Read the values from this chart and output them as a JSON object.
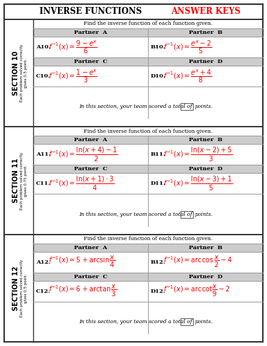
{
  "title_left": "INVERSE FUNCTIONS",
  "title_right": "ANSWER KEYS",
  "title_right_color": "#FF0000",
  "title_left_color": "#000000",
  "bg_color": "#FFFFFF",
  "border_color": "#333333",
  "header_bg": "#CCCCCC",
  "sections": [
    {
      "section_label": "SECTION 10",
      "side_text1": "Each problem solved correctly",
      "side_text2": "gives 0.5 point.",
      "instruction": "Find the inverse function of each function given.",
      "partners": [
        {
          "label": "Partner A",
          "id": "A10.",
          "formula": "$f^{-1}(x)=\\dfrac{9-e^{x}}{6}$"
        },
        {
          "label": "Partner B",
          "id": "B10.",
          "formula": "$f^{-1}(x)=\\dfrac{e^{x}-2}{5}$"
        },
        {
          "label": "Partner C",
          "id": "C10.",
          "formula": "$f^{-1}(x)=\\dfrac{1-e^{x}}{3}$"
        },
        {
          "label": "Partner D",
          "id": "D10.",
          "formula": "$f^{-1}(x)=\\dfrac{e^{x}+4}{8}$"
        }
      ],
      "score_text": "In this section, your team scored a total of",
      "score_suffix": "points."
    },
    {
      "section_label": "SECTION 11",
      "side_text1": "Each problem solved correctly",
      "side_text2": "gives 0.75 point.",
      "instruction": "Find the inverse function of each function given.",
      "partners": [
        {
          "label": "Partner A",
          "id": "A11.",
          "formula": "$f^{-1}(x)=\\dfrac{\\ln(x+4)-1}{2}$"
        },
        {
          "label": "Partner B",
          "id": "B11.",
          "formula": "$f^{-1}(x)=\\dfrac{\\ln(x-2)+5}{3}$"
        },
        {
          "label": "Partner C",
          "id": "C11.",
          "formula": "$f^{-1}(x)=\\dfrac{\\ln(x+1)\\cdot 3}{4}$"
        },
        {
          "label": "Partner D",
          "id": "D11.",
          "formula": "$f^{-1}(x)=\\dfrac{\\ln(x-3)+1}{5}$"
        }
      ],
      "score_text": "In this section, your team scored a total of",
      "score_suffix": "points."
    },
    {
      "section_label": "SECTION 12",
      "side_text1": "Each problem solved correctly",
      "side_text2": "gives 0.5 point.",
      "instruction": "Find the inverse function of each function given.",
      "partners": [
        {
          "label": "Partner A",
          "id": "A12.",
          "formula": "$f^{-1}(x)=5+\\arcsin\\dfrac{x}{4}$"
        },
        {
          "label": "Partner B",
          "id": "B12.",
          "formula": "$f^{-1}(x)=\\arccos\\dfrac{x}{2}-4$"
        },
        {
          "label": "Partner C",
          "id": "C12.",
          "formula": "$f^{-1}(x)=6+\\arctan\\dfrac{x}{3}$"
        },
        {
          "label": "Partner D",
          "id": "D12.",
          "formula": "$f^{-1}(x)=\\mathrm{arccot}\\dfrac{x}{9}-2$"
        }
      ],
      "score_text": "In this section, your team scored a total of",
      "score_suffix": "points."
    }
  ]
}
